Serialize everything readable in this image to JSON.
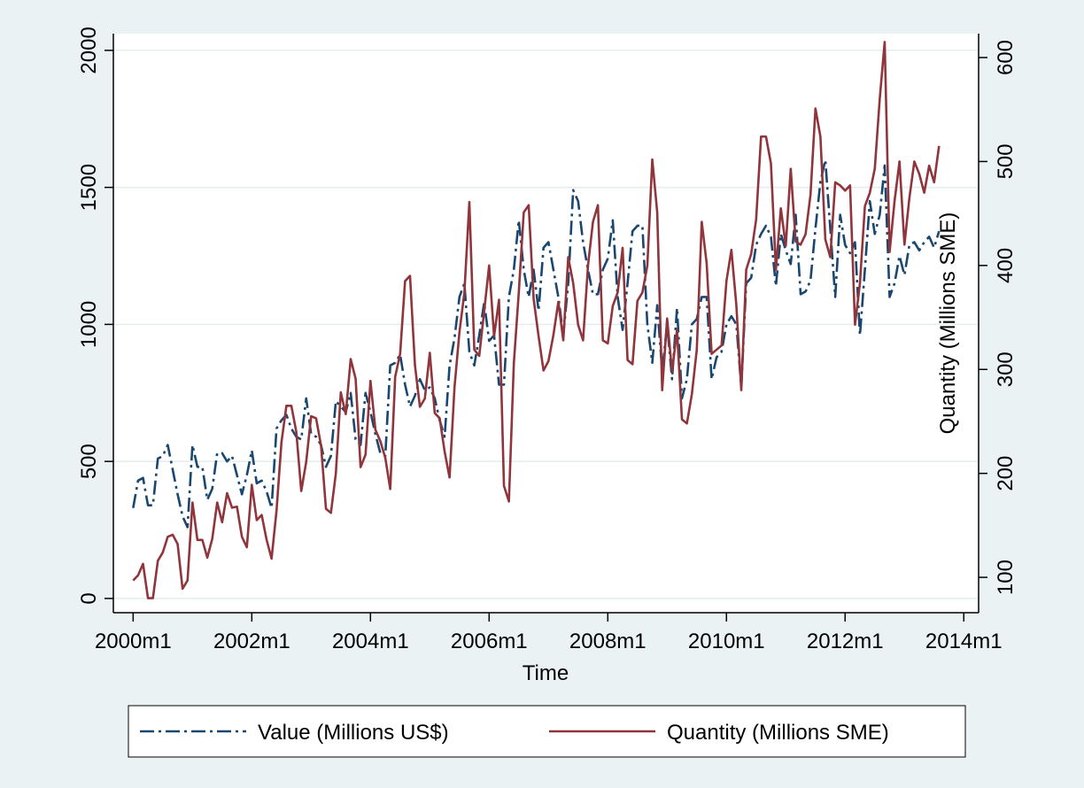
{
  "chart_data": {
    "type": "line",
    "xlabel": "Time",
    "y2label": "Quantity (Millions SME)",
    "x": [
      "2000m1",
      "2000m2",
      "2000m3",
      "2000m4",
      "2000m5",
      "2000m6",
      "2000m7",
      "2000m8",
      "2000m9",
      "2000m10",
      "2000m11",
      "2000m12",
      "2001m1",
      "2001m2",
      "2001m3",
      "2001m4",
      "2001m5",
      "2001m6",
      "2001m7",
      "2001m8",
      "2001m9",
      "2001m10",
      "2001m11",
      "2001m12",
      "2002m1",
      "2002m2",
      "2002m3",
      "2002m4",
      "2002m5",
      "2002m6",
      "2002m7",
      "2002m8",
      "2002m9",
      "2002m10",
      "2002m11",
      "2002m12",
      "2003m1",
      "2003m2",
      "2003m3",
      "2003m4",
      "2003m5",
      "2003m6",
      "2003m7",
      "2003m8",
      "2003m9",
      "2003m10",
      "2003m11",
      "2003m12",
      "2004m1",
      "2004m2",
      "2004m3",
      "2004m4",
      "2004m5",
      "2004m6",
      "2004m7",
      "2004m8",
      "2004m9",
      "2004m10",
      "2004m11",
      "2004m12",
      "2005m1",
      "2005m2",
      "2005m3",
      "2005m4",
      "2005m5",
      "2005m6",
      "2005m7",
      "2005m8",
      "2005m9",
      "2005m10",
      "2005m11",
      "2005m12",
      "2006m1",
      "2006m2",
      "2006m3",
      "2006m4",
      "2006m5",
      "2006m6",
      "2006m7",
      "2006m8",
      "2006m9",
      "2006m10",
      "2006m11",
      "2006m12",
      "2007m1",
      "2007m2",
      "2007m3",
      "2007m4",
      "2007m5",
      "2007m6",
      "2007m7",
      "2007m8",
      "2007m9",
      "2007m10",
      "2007m11",
      "2007m12",
      "2008m1",
      "2008m2",
      "2008m3",
      "2008m4",
      "2008m5",
      "2008m6",
      "2008m7",
      "2008m8",
      "2008m9",
      "2008m10",
      "2008m11",
      "2008m12",
      "2009m1",
      "2009m2",
      "2009m3",
      "2009m4",
      "2009m5",
      "2009m6",
      "2009m7",
      "2009m8",
      "2009m9",
      "2009m10",
      "2009m11",
      "2009m12",
      "2010m1",
      "2010m2",
      "2010m3",
      "2010m4",
      "2010m5",
      "2010m6",
      "2010m7",
      "2010m8",
      "2010m9",
      "2010m10",
      "2010m11",
      "2010m12",
      "2011m1",
      "2011m2",
      "2011m3",
      "2011m4",
      "2011m5",
      "2011m6",
      "2011m7",
      "2011m8",
      "2011m9",
      "2011m10",
      "2011m11",
      "2011m12",
      "2012m1",
      "2012m2",
      "2012m3",
      "2012m4",
      "2012m5",
      "2012m6",
      "2012m7",
      "2012m8",
      "2012m9",
      "2012m10",
      "2012m11",
      "2012m12",
      "2013m1",
      "2013m2",
      "2013m3",
      "2013m4",
      "2013m5",
      "2013m6",
      "2013m7",
      "2013m8"
    ],
    "series": [
      {
        "name": "Value (Millions US$)",
        "color": "#1a476f",
        "axis": "y",
        "values": [
          330,
          430,
          440,
          340,
          340,
          510,
          520,
          560,
          470,
          380,
          300,
          260,
          560,
          480,
          480,
          360,
          400,
          530,
          530,
          500,
          520,
          450,
          380,
          450,
          540,
          420,
          430,
          390,
          330,
          620,
          650,
          670,
          620,
          590,
          580,
          730,
          600,
          590,
          560,
          480,
          520,
          720,
          700,
          680,
          750,
          580,
          560,
          750,
          680,
          600,
          530,
          520,
          850,
          860,
          890,
          780,
          700,
          740,
          800,
          760,
          770,
          730,
          650,
          590,
          850,
          950,
          1100,
          1150,
          900,
          850,
          960,
          1080,
          940,
          960,
          780,
          780,
          1100,
          1200,
          1380,
          1200,
          1100,
          1200,
          1050,
          1280,
          1300,
          1200,
          1100,
          960,
          1150,
          1490,
          1450,
          1300,
          1200,
          1110,
          1110,
          1200,
          1240,
          1380,
          1100,
          980,
          1150,
          1340,
          1360,
          1360,
          1000,
          860,
          1070,
          830,
          1000,
          800,
          1060,
          730,
          800,
          1000,
          1020,
          1100,
          1100,
          800,
          880,
          900,
          1000,
          1030,
          1000,
          770,
          1150,
          1170,
          1290,
          1330,
          1360,
          1320,
          1140,
          1330,
          1270,
          1220,
          1400,
          1110,
          1120,
          1160,
          1350,
          1520,
          1600,
          1350,
          1100,
          1400,
          1290,
          1260,
          1300,
          960,
          1200,
          1450,
          1330,
          1400,
          1580,
          1100,
          1150,
          1250,
          1180,
          1290,
          1300,
          1270,
          1300,
          1320,
          1280,
          1340
        ]
      },
      {
        "name": "Quantity (Millions SME)",
        "color": "#90353b",
        "axis": "y2",
        "values": [
          97,
          102,
          113,
          80,
          80,
          116,
          124,
          139,
          141,
          132,
          89,
          97,
          172,
          136,
          136,
          119,
          137,
          172,
          153,
          181,
          167,
          168,
          139,
          129,
          189,
          155,
          160,
          136,
          118,
          164,
          230,
          265,
          265,
          240,
          183,
          211,
          255,
          253,
          227,
          166,
          162,
          200,
          278,
          257,
          310,
          291,
          206,
          218,
          289,
          242,
          231,
          215,
          185,
          293,
          315,
          385,
          390,
          304,
          264,
          272,
          316,
          258,
          253,
          221,
          196,
          283,
          336,
          374,
          461,
          319,
          313,
          356,
          400,
          332,
          367,
          188,
          173,
          306,
          374,
          451,
          458,
          368,
          332,
          299,
          308,
          333,
          365,
          328,
          408,
          383,
          343,
          328,
          400,
          442,
          458,
          328,
          325,
          361,
          374,
          417,
          309,
          305,
          366,
          374,
          400,
          502,
          451,
          280,
          349,
          298,
          338,
          252,
          248,
          276,
          319,
          442,
          402,
          315,
          319,
          323,
          385,
          415,
          362,
          280,
          396,
          411,
          444,
          524,
          524,
          498,
          396,
          455,
          419,
          493,
          423,
          420,
          430,
          468,
          551,
          524,
          425,
          408,
          480,
          477,
          472,
          477,
          343,
          383,
          457,
          470,
          493,
          560,
          615,
          413,
          462,
          500,
          420,
          465,
          500,
          488,
          470,
          496,
          480,
          515
        ]
      }
    ],
    "xlim": [
      "1999m9",
      "2014m4"
    ],
    "xticks": [
      "2000m1",
      "2002m1",
      "2004m1",
      "2006m1",
      "2008m1",
      "2010m1",
      "2012m1",
      "2014m1"
    ],
    "ylim": [
      -52,
      2061
    ],
    "yticks": [
      0,
      500,
      1000,
      1500,
      2000
    ],
    "y2lim": [
      66,
      623
    ],
    "y2ticks": [
      100,
      200,
      300,
      400,
      500,
      600
    ],
    "grid": true
  }
}
